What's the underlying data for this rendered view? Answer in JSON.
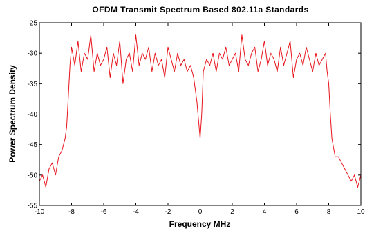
{
  "chart_data": {
    "type": "line",
    "title": "OFDM Transmit Spectrum Based 802.11a Standards",
    "xlabel": "Frequency MHz",
    "ylabel": "Power Spectrum Density",
    "xlim": [
      -10,
      10
    ],
    "ylim": [
      -55,
      -25
    ],
    "xticks": [
      -10,
      -8,
      -6,
      -4,
      -2,
      0,
      2,
      4,
      6,
      8,
      10
    ],
    "yticks": [
      -25,
      -30,
      -35,
      -40,
      -45,
      -50,
      -55
    ],
    "grid": false,
    "legend": "none",
    "series_color": "#e8141c",
    "series": [
      {
        "x": [
          -10.0,
          -9.8,
          -9.6,
          -9.4,
          -9.2,
          -9.0,
          -8.8,
          -8.6,
          -8.4,
          -8.3,
          -8.2,
          -8.1,
          -8.0,
          -7.8,
          -7.6,
          -7.4,
          -7.2,
          -7.0,
          -6.8,
          -6.6,
          -6.4,
          -6.2,
          -6.0,
          -5.8,
          -5.6,
          -5.4,
          -5.2,
          -5.0,
          -4.8,
          -4.6,
          -4.4,
          -4.2,
          -4.0,
          -3.8,
          -3.6,
          -3.4,
          -3.2,
          -3.0,
          -2.8,
          -2.6,
          -2.4,
          -2.2,
          -2.0,
          -1.8,
          -1.6,
          -1.4,
          -1.2,
          -1.0,
          -0.8,
          -0.6,
          -0.4,
          -0.2,
          -0.1,
          0.0,
          0.1,
          0.2,
          0.4,
          0.6,
          0.8,
          1.0,
          1.2,
          1.4,
          1.6,
          1.8,
          2.0,
          2.2,
          2.4,
          2.6,
          2.8,
          3.0,
          3.2,
          3.4,
          3.6,
          3.8,
          4.0,
          4.2,
          4.4,
          4.6,
          4.8,
          5.0,
          5.2,
          5.4,
          5.6,
          5.8,
          6.0,
          6.2,
          6.4,
          6.6,
          6.8,
          7.0,
          7.2,
          7.4,
          7.6,
          7.8,
          7.9,
          8.0,
          8.1,
          8.2,
          8.4,
          8.6,
          8.8,
          9.0,
          9.2,
          9.4,
          9.6,
          9.8,
          10.0
        ],
        "y": [
          -51,
          -50,
          -52,
          -49,
          -48,
          -50,
          -47,
          -46,
          -44,
          -42,
          -37,
          -32,
          -29,
          -32,
          -28,
          -33,
          -30,
          -31,
          -27,
          -33,
          -30,
          -32,
          -31,
          -29,
          -34,
          -30,
          -32,
          -28,
          -35,
          -31,
          -30,
          -33,
          -27,
          -32,
          -30,
          -31,
          -29,
          -33,
          -30,
          -32,
          -31,
          -34,
          -29,
          -31,
          -33,
          -30,
          -32,
          -31,
          -33,
          -32,
          -34,
          -38,
          -41,
          -44,
          -40,
          -33,
          -31,
          -32,
          -30,
          -33,
          -30,
          -31,
          -29,
          -32,
          -31,
          -30,
          -33,
          -27,
          -31,
          -32,
          -30,
          -29,
          -33,
          -31,
          -28,
          -32,
          -30,
          -31,
          -33,
          -29,
          -32,
          -30,
          -28,
          -34,
          -31,
          -30,
          -32,
          -29,
          -31,
          -33,
          -30,
          -32,
          -31,
          -30,
          -33,
          -35,
          -40,
          -44,
          -47,
          -47,
          -48,
          -49,
          -50,
          -51,
          -50,
          -52,
          -50
        ]
      }
    ]
  }
}
